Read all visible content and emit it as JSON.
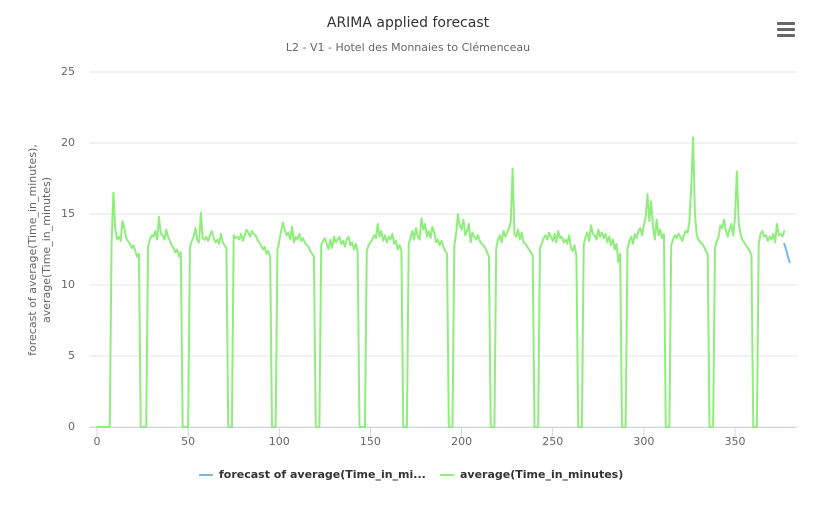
{
  "chart_data": {
    "type": "line",
    "title": "ARIMA applied forecast",
    "subtitle": "L2 - V1 - Hotel des Monnaies to Clémenceau",
    "ylabel": [
      "forecast of average(Time_in_minutes),",
      "average(Time_in_minutes)"
    ],
    "xlim": [
      -4,
      384
    ],
    "xticks": [
      0,
      50,
      100,
      150,
      200,
      250,
      300,
      350
    ],
    "ylim": [
      0,
      25
    ],
    "yticks": [
      0,
      5,
      10,
      15,
      20,
      25
    ],
    "grid": true,
    "legend": "bottom",
    "series": [
      {
        "name": "forecast of average(Time_in_mi...",
        "color": "#7cb5ec",
        "x": [
          377,
          378,
          379,
          380
        ],
        "values": [
          12.9,
          12.5,
          12.0,
          11.6
        ]
      },
      {
        "name": "average(Time_in_minutes)",
        "color": "#90ed7d",
        "x": [
          0,
          1,
          2,
          3,
          4,
          5,
          6,
          7,
          8,
          9,
          10,
          11,
          12,
          13,
          14,
          15,
          16,
          17,
          18,
          19,
          20,
          21,
          22,
          23,
          24,
          25,
          26,
          27,
          28,
          29,
          30,
          31,
          32,
          33,
          34,
          35,
          36,
          37,
          38,
          39,
          40,
          41,
          42,
          43,
          44,
          45,
          46,
          47,
          48,
          49,
          50,
          51,
          52,
          53,
          54,
          55,
          56,
          57,
          58,
          59,
          60,
          61,
          62,
          63,
          64,
          65,
          66,
          67,
          68,
          69,
          70,
          71,
          72,
          73,
          74,
          75,
          76,
          77,
          78,
          79,
          80,
          81,
          82,
          83,
          84,
          85,
          86,
          87,
          88,
          89,
          90,
          91,
          92,
          93,
          94,
          95,
          96,
          97,
          98,
          99,
          100,
          101,
          102,
          103,
          104,
          105,
          106,
          107,
          108,
          109,
          110,
          111,
          112,
          113,
          114,
          115,
          116,
          117,
          118,
          119,
          120,
          121,
          122,
          123,
          124,
          125,
          126,
          127,
          128,
          129,
          130,
          131,
          132,
          133,
          134,
          135,
          136,
          137,
          138,
          139,
          140,
          141,
          142,
          143,
          144,
          145,
          146,
          147,
          148,
          149,
          150,
          151,
          152,
          153,
          154,
          155,
          156,
          157,
          158,
          159,
          160,
          161,
          162,
          163,
          164,
          165,
          166,
          167,
          168,
          169,
          170,
          171,
          172,
          173,
          174,
          175,
          176,
          177,
          178,
          179,
          180,
          181,
          182,
          183,
          184,
          185,
          186,
          187,
          188,
          189,
          190,
          191,
          192,
          193,
          194,
          195,
          196,
          197,
          198,
          199,
          200,
          201,
          202,
          203,
          204,
          205,
          206,
          207,
          208,
          209,
          210,
          211,
          212,
          213,
          214,
          215,
          216,
          217,
          218,
          219,
          220,
          221,
          222,
          223,
          224,
          225,
          226,
          227,
          228,
          229,
          230,
          231,
          232,
          233,
          234,
          235,
          236,
          237,
          238,
          239,
          240,
          241,
          242,
          243,
          244,
          245,
          246,
          247,
          248,
          249,
          250,
          251,
          252,
          253,
          254,
          255,
          256,
          257,
          258,
          259,
          260,
          261,
          262,
          263,
          264,
          265,
          266,
          267,
          268,
          269,
          270,
          271,
          272,
          273,
          274,
          275,
          276,
          277,
          278,
          279,
          280,
          281,
          282,
          283,
          284,
          285,
          286,
          287,
          288,
          289,
          290,
          291,
          292,
          293,
          294,
          295,
          296,
          297,
          298,
          299,
          300,
          301,
          302,
          303,
          304,
          305,
          306,
          307,
          308,
          309,
          310,
          311,
          312,
          313,
          314,
          315,
          316,
          317,
          318,
          319,
          320,
          321,
          322,
          323,
          324,
          325,
          326,
          327,
          328,
          329,
          330,
          331,
          332,
          333,
          334,
          335,
          336,
          337,
          338,
          339,
          340,
          341,
          342,
          343,
          344,
          345,
          346,
          347,
          348,
          349,
          350,
          351,
          352,
          353,
          354,
          355,
          356,
          357,
          358,
          359,
          360,
          361,
          362,
          363,
          364,
          365,
          366,
          367,
          368,
          369,
          370,
          371,
          372,
          373,
          374,
          375,
          376,
          377
        ],
        "values": [
          0,
          0,
          0,
          0,
          0,
          0,
          0,
          0,
          13.0,
          16.5,
          14.0,
          13.2,
          13.4,
          13.1,
          14.5,
          14.0,
          13.3,
          13.1,
          12.9,
          12.6,
          12.8,
          12.4,
          12.0,
          12.2,
          0,
          0,
          0,
          0,
          12.7,
          13.2,
          13.5,
          13.4,
          13.8,
          13.2,
          14.8,
          13.6,
          13.5,
          13.2,
          13.9,
          13.4,
          13.1,
          12.8,
          12.6,
          12.3,
          12.5,
          12.0,
          12.3,
          0,
          0,
          0,
          0,
          12.7,
          13.1,
          13.4,
          14.0,
          13.2,
          13.0,
          15.1,
          13.3,
          13.2,
          13.4,
          13.1,
          13.5,
          13.8,
          13.3,
          13.0,
          13.2,
          12.9,
          13.6,
          13.0,
          12.8,
          12.6,
          0,
          0,
          0,
          13.5,
          13.3,
          13.4,
          13.2,
          13.6,
          13.1,
          13.5,
          13.9,
          13.7,
          13.4,
          13.8,
          13.6,
          13.5,
          13.2,
          13.0,
          12.8,
          12.5,
          12.7,
          12.2,
          12.4,
          12.0,
          0,
          0,
          0,
          12.5,
          13.1,
          13.8,
          14.4,
          13.9,
          13.5,
          13.7,
          13.2,
          14.1,
          13.0,
          13.4,
          13.2,
          13.6,
          13.1,
          13.3,
          13.0,
          12.8,
          12.7,
          12.4,
          12.2,
          12.0,
          0,
          0,
          0,
          12.8,
          13.1,
          13.3,
          12.9,
          12.5,
          13.2,
          12.6,
          13.4,
          13.0,
          13.2,
          13.4,
          12.9,
          13.1,
          12.7,
          13.2,
          13.4,
          12.8,
          13.0,
          12.5,
          12.9,
          12.3,
          0,
          0,
          0,
          0,
          12.4,
          12.8,
          13.0,
          13.2,
          13.5,
          13.3,
          14.3,
          13.4,
          13.8,
          13.1,
          13.5,
          13.0,
          13.4,
          13.2,
          13.6,
          12.9,
          13.1,
          12.5,
          12.8,
          12.4,
          0,
          0,
          0,
          12.9,
          13.3,
          13.8,
          13.2,
          14.0,
          13.4,
          13.2,
          14.7,
          13.9,
          14.3,
          13.4,
          13.8,
          13.3,
          14.1,
          13.7,
          13.0,
          13.2,
          12.8,
          13.1,
          12.7,
          12.4,
          12.2,
          0,
          0,
          0,
          12.8,
          13.6,
          15.0,
          14.2,
          13.9,
          14.6,
          13.5,
          13.8,
          14.3,
          13.0,
          13.7,
          13.4,
          13.2,
          13.5,
          13.1,
          12.9,
          12.8,
          12.6,
          12.3,
          12.0,
          0,
          0,
          0,
          12.6,
          13.2,
          13.5,
          13.0,
          13.8,
          13.4,
          13.7,
          14.0,
          14.5,
          18.2,
          13.6,
          13.4,
          13.9,
          13.2,
          13.7,
          13.0,
          12.9,
          12.7,
          12.5,
          12.3,
          12.1,
          0,
          0,
          0,
          12.6,
          12.9,
          13.3,
          13.5,
          13.2,
          13.7,
          13.4,
          13.1,
          13.6,
          13.0,
          13.8,
          13.3,
          13.4,
          13.0,
          13.2,
          12.9,
          13.5,
          12.6,
          12.4,
          12.8,
          12.0,
          0,
          0,
          0,
          12.8,
          13.4,
          13.7,
          13.1,
          14.2,
          13.6,
          13.5,
          13.2,
          13.9,
          13.4,
          13.7,
          13.3,
          13.6,
          13.0,
          13.4,
          12.8,
          13.2,
          12.5,
          12.9,
          11.6,
          12.2,
          0,
          0,
          0,
          12.5,
          13.1,
          13.4,
          12.9,
          13.6,
          13.3,
          13.8,
          14.0,
          13.5,
          14.2,
          14.8,
          16.4,
          14.5,
          15.9,
          14.1,
          13.2,
          14.6,
          13.5,
          13.9,
          13.3,
          13.6,
          0,
          0,
          0,
          12.8,
          13.2,
          13.5,
          13.3,
          13.6,
          13.4,
          13.1,
          13.5,
          13.8,
          13.7,
          14.5,
          17.0,
          20.4,
          15.0,
          13.5,
          13.2,
          13.0,
          12.9,
          12.7,
          12.4,
          12.2,
          0,
          0,
          0,
          12.6,
          13.1,
          13.4,
          14.2,
          14.0,
          14.6,
          13.8,
          13.4,
          13.9,
          14.3,
          13.5,
          14.8,
          18.0,
          14.4,
          13.6,
          13.2,
          13.0,
          12.8,
          12.6,
          12.4,
          12.1,
          0,
          0,
          0,
          12.9,
          13.6,
          13.8,
          13.4,
          13.5,
          13.1,
          13.4,
          13.2,
          13.6,
          13.0,
          14.3,
          13.5,
          13.6,
          13.4,
          13.8
        ]
      }
    ]
  }
}
